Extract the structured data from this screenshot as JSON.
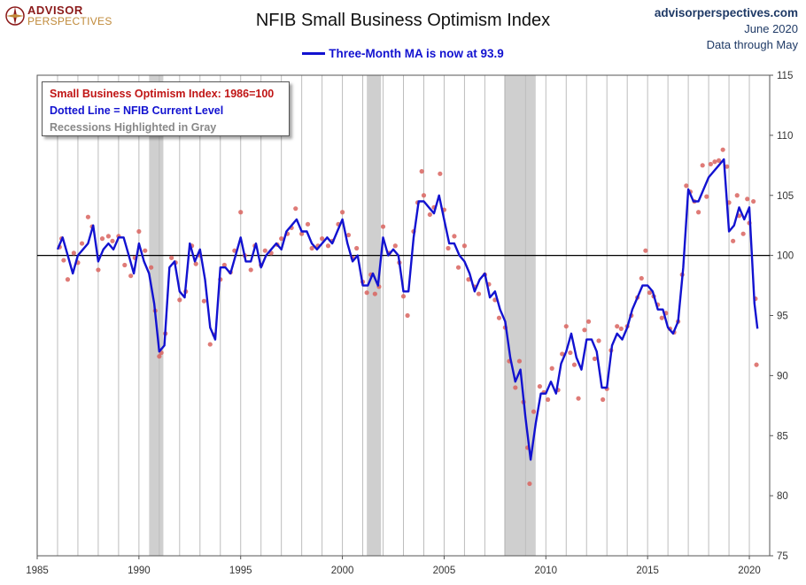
{
  "header": {
    "logo_line1": "ADVISOR",
    "logo_line2": "PERSPECTIVES",
    "title": "NFIB Small Business Optimism Index",
    "site": "advisorperspectives.com",
    "date": "June 2020",
    "through": "Data through May"
  },
  "legend": {
    "ma_label": "Three-Month MA is now at 93.9"
  },
  "notes": {
    "line1": "Small Business Optimism Index: 1986=100",
    "line2": "Dotted Line = NFIB Current Level",
    "line3": "Recessions Highlighted in Gray"
  },
  "colors": {
    "ma_line": "#1212d0",
    "dots": "#d9645f",
    "recession": "#cfcfcf",
    "baseline": "#000000",
    "grid": "#bdbdbd"
  },
  "chart_data": {
    "type": "line",
    "title": "NFIB Small Business Optimism Index",
    "xlim": [
      1985,
      2021
    ],
    "ylim": [
      75,
      115
    ],
    "x_ticks": [
      1985,
      1990,
      1995,
      2000,
      2005,
      2010,
      2015,
      2020
    ],
    "y_ticks": [
      75,
      80,
      85,
      90,
      95,
      100,
      105,
      110,
      115
    ],
    "y_axis_position": "right",
    "reference_line": 100,
    "grid": "vertical yearly",
    "recessions": [
      [
        1990.5,
        1991.2
      ],
      [
        2001.2,
        2001.9
      ],
      [
        2007.95,
        2009.5
      ]
    ],
    "series": [
      {
        "name": "Three-Month MA",
        "style": "solid line",
        "points": [
          [
            1986.0,
            100.5
          ],
          [
            1986.25,
            101.5
          ],
          [
            1986.5,
            100.0
          ],
          [
            1986.75,
            98.5
          ],
          [
            1987.0,
            100.0
          ],
          [
            1987.25,
            100.5
          ],
          [
            1987.5,
            101.0
          ],
          [
            1987.75,
            102.5
          ],
          [
            1988.0,
            99.5
          ],
          [
            1988.25,
            100.5
          ],
          [
            1988.5,
            101.0
          ],
          [
            1988.75,
            100.5
          ],
          [
            1989.0,
            101.5
          ],
          [
            1989.25,
            101.5
          ],
          [
            1989.5,
            100.0
          ],
          [
            1989.75,
            98.5
          ],
          [
            1990.0,
            101.0
          ],
          [
            1990.25,
            99.5
          ],
          [
            1990.5,
            98.5
          ],
          [
            1990.75,
            96.0
          ],
          [
            1991.0,
            92.0
          ],
          [
            1991.25,
            92.5
          ],
          [
            1991.5,
            99.0
          ],
          [
            1991.75,
            99.5
          ],
          [
            1992.0,
            97.0
          ],
          [
            1992.25,
            96.5
          ],
          [
            1992.5,
            101.0
          ],
          [
            1992.75,
            99.5
          ],
          [
            1993.0,
            100.5
          ],
          [
            1993.25,
            98.0
          ],
          [
            1993.5,
            94.0
          ],
          [
            1993.75,
            93.0
          ],
          [
            1994.0,
            99.0
          ],
          [
            1994.25,
            99.0
          ],
          [
            1994.5,
            98.5
          ],
          [
            1994.75,
            100.0
          ],
          [
            1995.0,
            101.5
          ],
          [
            1995.25,
            99.5
          ],
          [
            1995.5,
            99.5
          ],
          [
            1995.75,
            101.0
          ],
          [
            1996.0,
            99.0
          ],
          [
            1996.25,
            100.0
          ],
          [
            1996.5,
            100.5
          ],
          [
            1996.75,
            101.0
          ],
          [
            1997.0,
            100.5
          ],
          [
            1997.25,
            102.0
          ],
          [
            1997.5,
            102.5
          ],
          [
            1997.75,
            103.0
          ],
          [
            1998.0,
            102.0
          ],
          [
            1998.25,
            102.0
          ],
          [
            1998.5,
            101.0
          ],
          [
            1998.75,
            100.5
          ],
          [
            1999.0,
            101.0
          ],
          [
            1999.25,
            101.5
          ],
          [
            1999.5,
            101.0
          ],
          [
            1999.75,
            102.0
          ],
          [
            2000.0,
            103.0
          ],
          [
            2000.25,
            101.0
          ],
          [
            2000.5,
            99.5
          ],
          [
            2000.75,
            100.0
          ],
          [
            2001.0,
            97.5
          ],
          [
            2001.25,
            97.5
          ],
          [
            2001.5,
            98.5
          ],
          [
            2001.75,
            97.5
          ],
          [
            2002.0,
            101.5
          ],
          [
            2002.25,
            100.0
          ],
          [
            2002.5,
            100.5
          ],
          [
            2002.75,
            100.0
          ],
          [
            2003.0,
            97.0
          ],
          [
            2003.25,
            97.0
          ],
          [
            2003.5,
            101.5
          ],
          [
            2003.75,
            104.5
          ],
          [
            2004.0,
            104.5
          ],
          [
            2004.25,
            104.0
          ],
          [
            2004.5,
            103.5
          ],
          [
            2004.75,
            105.0
          ],
          [
            2005.0,
            103.0
          ],
          [
            2005.25,
            101.0
          ],
          [
            2005.5,
            101.0
          ],
          [
            2005.75,
            100.0
          ],
          [
            2006.0,
            99.5
          ],
          [
            2006.25,
            98.5
          ],
          [
            2006.5,
            97.0
          ],
          [
            2006.75,
            98.0
          ],
          [
            2007.0,
            98.5
          ],
          [
            2007.25,
            96.5
          ],
          [
            2007.5,
            97.0
          ],
          [
            2007.75,
            95.5
          ],
          [
            2008.0,
            94.5
          ],
          [
            2008.25,
            91.5
          ],
          [
            2008.5,
            89.5
          ],
          [
            2008.75,
            90.5
          ],
          [
            2009.0,
            86.5
          ],
          [
            2009.25,
            83.0
          ],
          [
            2009.5,
            86.0
          ],
          [
            2009.75,
            88.5
          ],
          [
            2010.0,
            88.5
          ],
          [
            2010.25,
            89.5
          ],
          [
            2010.5,
            88.5
          ],
          [
            2010.75,
            91.0
          ],
          [
            2011.0,
            92.0
          ],
          [
            2011.25,
            93.5
          ],
          [
            2011.5,
            91.5
          ],
          [
            2011.75,
            90.5
          ],
          [
            2012.0,
            93.0
          ],
          [
            2012.25,
            93.0
          ],
          [
            2012.5,
            92.0
          ],
          [
            2012.75,
            89.0
          ],
          [
            2013.0,
            89.0
          ],
          [
            2013.25,
            92.5
          ],
          [
            2013.5,
            93.5
          ],
          [
            2013.75,
            93.0
          ],
          [
            2014.0,
            94.0
          ],
          [
            2014.25,
            95.5
          ],
          [
            2014.5,
            96.5
          ],
          [
            2014.75,
            97.5
          ],
          [
            2015.0,
            97.5
          ],
          [
            2015.25,
            97.0
          ],
          [
            2015.5,
            95.5
          ],
          [
            2015.75,
            95.5
          ],
          [
            2016.0,
            94.0
          ],
          [
            2016.25,
            93.5
          ],
          [
            2016.5,
            94.5
          ],
          [
            2016.75,
            99.0
          ],
          [
            2017.0,
            105.5
          ],
          [
            2017.25,
            104.5
          ],
          [
            2017.5,
            104.5
          ],
          [
            2017.75,
            105.5
          ],
          [
            2018.0,
            106.5
          ],
          [
            2018.25,
            107.0
          ],
          [
            2018.5,
            107.5
          ],
          [
            2018.75,
            108.0
          ],
          [
            2019.0,
            102.0
          ],
          [
            2019.25,
            102.5
          ],
          [
            2019.5,
            104.0
          ],
          [
            2019.75,
            103.0
          ],
          [
            2020.0,
            104.0
          ],
          [
            2020.25,
            96.0
          ],
          [
            2020.4,
            93.9
          ]
        ]
      },
      {
        "name": "NFIB Current Level",
        "style": "dots",
        "points": [
          [
            1986.1,
            100.7
          ],
          [
            1986.2,
            101.4
          ],
          [
            1986.3,
            99.6
          ],
          [
            1986.5,
            98.0
          ],
          [
            1986.8,
            100.2
          ],
          [
            1987.0,
            99.4
          ],
          [
            1987.2,
            101.0
          ],
          [
            1987.5,
            103.2
          ],
          [
            1987.7,
            102.4
          ],
          [
            1988.0,
            98.8
          ],
          [
            1988.2,
            101.4
          ],
          [
            1988.5,
            101.6
          ],
          [
            1988.7,
            101.2
          ],
          [
            1989.0,
            101.6
          ],
          [
            1989.3,
            99.2
          ],
          [
            1989.6,
            98.3
          ],
          [
            1989.8,
            99.8
          ],
          [
            1990.0,
            102.0
          ],
          [
            1990.3,
            100.4
          ],
          [
            1990.6,
            99.0
          ],
          [
            1990.8,
            95.4
          ],
          [
            1991.0,
            91.6
          ],
          [
            1991.1,
            91.9
          ],
          [
            1991.3,
            93.5
          ],
          [
            1991.6,
            99.8
          ],
          [
            1991.8,
            99.4
          ],
          [
            1992.0,
            96.3
          ],
          [
            1992.3,
            97.0
          ],
          [
            1992.6,
            100.8
          ],
          [
            1992.8,
            99.3
          ],
          [
            1993.0,
            100.0
          ],
          [
            1993.2,
            96.2
          ],
          [
            1993.5,
            92.6
          ],
          [
            1993.7,
            93.4
          ],
          [
            1994.0,
            98.0
          ],
          [
            1994.2,
            99.2
          ],
          [
            1994.5,
            98.6
          ],
          [
            1994.7,
            100.4
          ],
          [
            1995.0,
            103.6
          ],
          [
            1995.2,
            100.0
          ],
          [
            1995.5,
            98.8
          ],
          [
            1995.7,
            100.8
          ],
          [
            1996.0,
            99.2
          ],
          [
            1996.2,
            100.4
          ],
          [
            1996.5,
            100.2
          ],
          [
            1996.8,
            100.9
          ],
          [
            1997.0,
            101.4
          ],
          [
            1997.3,
            101.8
          ],
          [
            1997.5,
            102.3
          ],
          [
            1997.7,
            103.9
          ],
          [
            1998.0,
            101.8
          ],
          [
            1998.3,
            102.6
          ],
          [
            1998.5,
            100.6
          ],
          [
            1998.8,
            100.8
          ],
          [
            1999.0,
            101.4
          ],
          [
            1999.3,
            100.8
          ],
          [
            1999.5,
            101.2
          ],
          [
            1999.8,
            102.6
          ],
          [
            2000.0,
            103.6
          ],
          [
            2000.3,
            101.7
          ],
          [
            2000.5,
            99.8
          ],
          [
            2000.7,
            100.6
          ],
          [
            2001.0,
            97.8
          ],
          [
            2001.2,
            96.9
          ],
          [
            2001.4,
            98.4
          ],
          [
            2001.6,
            96.8
          ],
          [
            2001.8,
            97.4
          ],
          [
            2002.0,
            102.4
          ],
          [
            2002.3,
            100.2
          ],
          [
            2002.6,
            100.8
          ],
          [
            2002.8,
            99.4
          ],
          [
            2003.0,
            96.6
          ],
          [
            2003.2,
            95.0
          ],
          [
            2003.5,
            102.0
          ],
          [
            2003.7,
            104.4
          ],
          [
            2003.9,
            107.0
          ],
          [
            2004.0,
            105.0
          ],
          [
            2004.3,
            103.4
          ],
          [
            2004.5,
            104.0
          ],
          [
            2004.8,
            106.8
          ],
          [
            2005.0,
            103.8
          ],
          [
            2005.2,
            100.6
          ],
          [
            2005.5,
            101.6
          ],
          [
            2005.7,
            99.0
          ],
          [
            2006.0,
            100.8
          ],
          [
            2006.2,
            98.0
          ],
          [
            2006.5,
            97.4
          ],
          [
            2006.7,
            96.8
          ],
          [
            2007.0,
            98.4
          ],
          [
            2007.2,
            97.6
          ],
          [
            2007.5,
            96.3
          ],
          [
            2007.7,
            94.8
          ],
          [
            2008.0,
            94.0
          ],
          [
            2008.2,
            91.2
          ],
          [
            2008.5,
            89.0
          ],
          [
            2008.7,
            91.2
          ],
          [
            2008.9,
            87.8
          ],
          [
            2009.1,
            84.0
          ],
          [
            2009.2,
            81.0
          ],
          [
            2009.4,
            87.0
          ],
          [
            2009.7,
            89.1
          ],
          [
            2009.9,
            88.6
          ],
          [
            2010.1,
            88.0
          ],
          [
            2010.3,
            90.6
          ],
          [
            2010.6,
            88.8
          ],
          [
            2010.8,
            91.8
          ],
          [
            2011.0,
            94.1
          ],
          [
            2011.2,
            91.9
          ],
          [
            2011.4,
            90.9
          ],
          [
            2011.6,
            88.1
          ],
          [
            2011.9,
            93.8
          ],
          [
            2012.1,
            94.5
          ],
          [
            2012.4,
            91.4
          ],
          [
            2012.6,
            92.9
          ],
          [
            2012.8,
            88.0
          ],
          [
            2013.0,
            88.9
          ],
          [
            2013.2,
            92.1
          ],
          [
            2013.5,
            94.1
          ],
          [
            2013.7,
            93.9
          ],
          [
            2014.0,
            94.1
          ],
          [
            2014.2,
            95.0
          ],
          [
            2014.5,
            96.5
          ],
          [
            2014.7,
            98.1
          ],
          [
            2014.9,
            100.4
          ],
          [
            2015.1,
            96.9
          ],
          [
            2015.3,
            96.6
          ],
          [
            2015.5,
            95.9
          ],
          [
            2015.7,
            94.8
          ],
          [
            2015.9,
            95.2
          ],
          [
            2016.1,
            93.9
          ],
          [
            2016.3,
            93.6
          ],
          [
            2016.5,
            94.5
          ],
          [
            2016.7,
            98.4
          ],
          [
            2016.9,
            105.8
          ],
          [
            2017.1,
            105.3
          ],
          [
            2017.3,
            104.5
          ],
          [
            2017.5,
            103.6
          ],
          [
            2017.7,
            107.5
          ],
          [
            2017.9,
            104.9
          ],
          [
            2018.1,
            107.6
          ],
          [
            2018.3,
            107.8
          ],
          [
            2018.5,
            107.9
          ],
          [
            2018.7,
            108.8
          ],
          [
            2018.9,
            107.4
          ],
          [
            2019.0,
            104.4
          ],
          [
            2019.2,
            101.2
          ],
          [
            2019.4,
            105.0
          ],
          [
            2019.5,
            103.3
          ],
          [
            2019.7,
            101.8
          ],
          [
            2019.9,
            104.7
          ],
          [
            2020.0,
            102.7
          ],
          [
            2020.2,
            104.5
          ],
          [
            2020.3,
            96.4
          ],
          [
            2020.35,
            90.9
          ]
        ]
      }
    ]
  }
}
